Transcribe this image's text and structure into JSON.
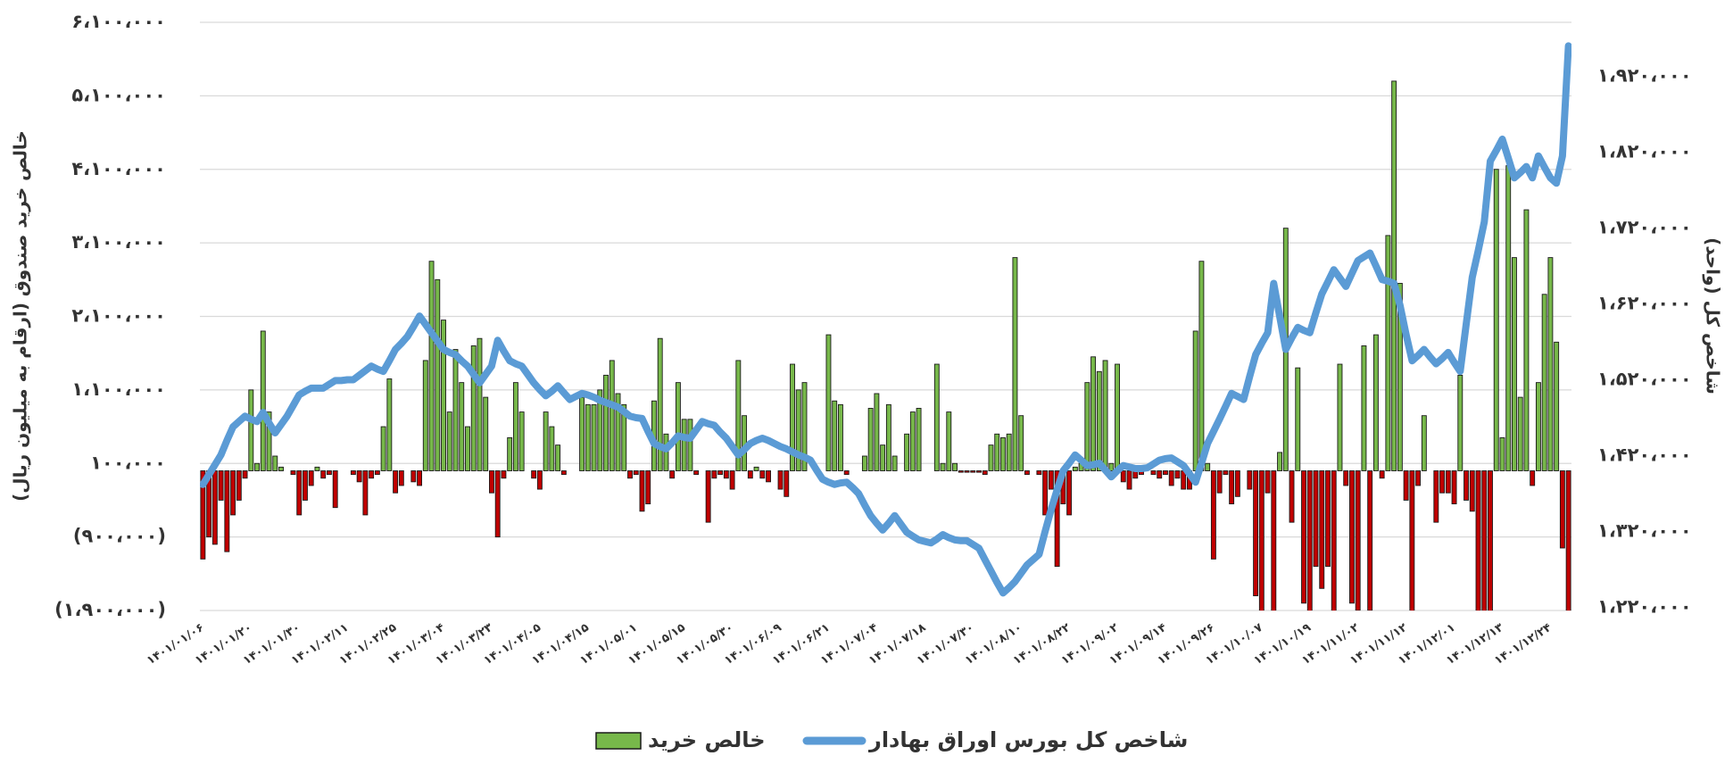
{
  "chart_data": {
    "type": "bar",
    "ylabel": "خالص خرید صندوق (ارقام به میلیون ریال)",
    "y2label": "شاخص کل (واحد)",
    "ylim": [
      -1900000,
      6100000
    ],
    "yticks": [
      {
        "value": 6100000,
        "label": "۶،۱۰۰،۰۰۰"
      },
      {
        "value": 5100000,
        "label": "۵،۱۰۰،۰۰۰"
      },
      {
        "value": 4100000,
        "label": "۴،۱۰۰،۰۰۰"
      },
      {
        "value": 3100000,
        "label": "۳،۱۰۰،۰۰۰"
      },
      {
        "value": 2100000,
        "label": "۲،۱۰۰،۰۰۰"
      },
      {
        "value": 1100000,
        "label": "۱،۱۰۰،۰۰۰"
      },
      {
        "value": 100000,
        "label": "۱۰۰،۰۰۰"
      },
      {
        "value": -900000,
        "label": "(۹۰۰،۰۰۰)"
      },
      {
        "value": -1900000,
        "label": "(۱،۹۰۰،۰۰۰)"
      }
    ],
    "y2lim": [
      1216000,
      1991000
    ],
    "y2ticks": [
      {
        "value": 1920000,
        "label": "۱،۹۲۰،۰۰۰"
      },
      {
        "value": 1820000,
        "label": "۱،۸۲۰،۰۰۰"
      },
      {
        "value": 1720000,
        "label": "۱،۷۲۰،۰۰۰"
      },
      {
        "value": 1620000,
        "label": "۱،۶۲۰،۰۰۰"
      },
      {
        "value": 1520000,
        "label": "۱،۵۲۰،۰۰۰"
      },
      {
        "value": 1420000,
        "label": "۱،۴۲۰،۰۰۰"
      },
      {
        "value": 1320000,
        "label": "۱،۳۲۰،۰۰۰"
      },
      {
        "value": 1220000,
        "label": "۱،۲۲۰،۰۰۰"
      }
    ],
    "grid": true,
    "categories": [
      "۱۴۰۱/۰۱/۰۶",
      null,
      null,
      null,
      null,
      null,
      null,
      null,
      "۱۴۰۱/۰۱/۲۰",
      null,
      null,
      null,
      null,
      null,
      null,
      null,
      "۱۴۰۱/۰۱/۳۰",
      null,
      null,
      null,
      null,
      null,
      null,
      null,
      "۱۴۰۱/۰۲/۱۱",
      null,
      null,
      null,
      null,
      null,
      null,
      null,
      "۱۴۰۱/۰۲/۲۵",
      null,
      null,
      null,
      null,
      null,
      null,
      null,
      "۱۴۰۱/۰۳/۰۴",
      null,
      null,
      null,
      null,
      null,
      null,
      null,
      "۱۴۰۱/۰۳/۲۳",
      null,
      null,
      null,
      null,
      null,
      null,
      null,
      "۱۴۰۱/۰۴/۰۵",
      null,
      null,
      null,
      null,
      null,
      null,
      null,
      "۱۴۰۱/۰۴/۱۵",
      null,
      null,
      null,
      null,
      null,
      null,
      null,
      "۱۴۰۱/۰۵/۰۱",
      null,
      null,
      null,
      null,
      null,
      null,
      null,
      "۱۴۰۱/۰۵/۱۵",
      null,
      null,
      null,
      null,
      null,
      null,
      null,
      "۱۴۰۱/۰۵/۳۰",
      null,
      null,
      null,
      null,
      null,
      null,
      null,
      "۱۴۰۱/۰۶/۰۹",
      null,
      null,
      null,
      null,
      null,
      null,
      null,
      "۱۴۰۱/۰۶/۲۱",
      null,
      null,
      null,
      null,
      null,
      null,
      null,
      "۱۴۰۱/۰۷/۰۴",
      null,
      null,
      null,
      null,
      null,
      null,
      null,
      "۱۴۰۱/۰۷/۱۸",
      null,
      null,
      null,
      null,
      null,
      null,
      null,
      "۱۴۰۱/۰۷/۳۰",
      null,
      null,
      null,
      null,
      null,
      null,
      null,
      "۱۴۰۱/۰۸/۱۰",
      null,
      null,
      null,
      null,
      null,
      null,
      null,
      "۱۴۰۱/۰۸/۲۲",
      null,
      null,
      null,
      null,
      null,
      null,
      null,
      "۱۴۰۱/۰۹/۰۲",
      null,
      null,
      null,
      null,
      null,
      null,
      null,
      "۱۴۰۱/۰۹/۱۴",
      null,
      null,
      null,
      null,
      null,
      null,
      null,
      "۱۴۰۱/۰۹/۲۶",
      null,
      null,
      null,
      null,
      null,
      null,
      null,
      "۱۴۰۱/۱۰/۰۷",
      null,
      null,
      null,
      null,
      null,
      null,
      null,
      "۱۴۰۱/۱۰/۱۹",
      null,
      null,
      null,
      null,
      null,
      null,
      null,
      "۱۴۰۱/۱۱/۰۲",
      null,
      null,
      null,
      null,
      null,
      null,
      null,
      "۱۴۰۱/۱۱/۱۲",
      null,
      null,
      null,
      null,
      null,
      null,
      null,
      "۱۴۰۱/۱۲/۰۱",
      null,
      null,
      null,
      null,
      null,
      null,
      null,
      "۱۴۰۱/۱۲/۱۳",
      null,
      null,
      null,
      null,
      null,
      null,
      null,
      "۱۴۰۱/۱۲/۲۴",
      null,
      null,
      null
    ],
    "series": [
      {
        "name": "خالص خرید",
        "type": "bar",
        "color": "#77b84a",
        "negative_color": "#c00000",
        "edge_color": "#1a1a1a",
        "values": [
          -1200000,
          -900000,
          -1000000,
          -400000,
          -1100000,
          -600000,
          -400000,
          -100000,
          1100000,
          100000,
          1900000,
          800000,
          200000,
          50000,
          0,
          -50000,
          -600000,
          -400000,
          -200000,
          50000,
          -100000,
          -50000,
          -500000,
          0,
          0,
          -50000,
          -150000,
          -600000,
          -100000,
          -50000,
          600000,
          1250000,
          -300000,
          -200000,
          0,
          -150000,
          -200000,
          1500000,
          2850000,
          2600000,
          2050000,
          800000,
          1650000,
          1200000,
          600000,
          1700000,
          1800000,
          1000000,
          -300000,
          -900000,
          -100000,
          450000,
          1200000,
          800000,
          0,
          -100000,
          -250000,
          800000,
          600000,
          350000,
          -50000,
          0,
          0,
          1000000,
          900000,
          900000,
          1100000,
          1300000,
          1500000,
          1050000,
          900000,
          -100000,
          -50000,
          -550000,
          -450000,
          950000,
          1800000,
          500000,
          -100000,
          1200000,
          700000,
          700000,
          -50000,
          0,
          -700000,
          -100000,
          -50000,
          -100000,
          -250000,
          1500000,
          750000,
          -100000,
          50000,
          -100000,
          -150000,
          0,
          -250000,
          -350000,
          1450000,
          1100000,
          1200000,
          0,
          0,
          0,
          1850000,
          950000,
          900000,
          -50000,
          0,
          0,
          200000,
          850000,
          1050000,
          350000,
          900000,
          200000,
          0,
          500000,
          800000,
          850000,
          0,
          0,
          1450000,
          100000,
          800000,
          100000,
          -20000,
          -20000,
          -20000,
          -20000,
          -50000,
          350000,
          500000,
          450000,
          500000,
          2900000,
          750000,
          -50000,
          0,
          -50000,
          -600000,
          -250000,
          -1300000,
          -450000,
          -600000,
          50000,
          100000,
          1200000,
          1550000,
          1350000,
          1500000,
          100000,
          1450000,
          -150000,
          -250000,
          -100000,
          -50000,
          0,
          -50000,
          -100000,
          -50000,
          -200000,
          -100000,
          -250000,
          -250000,
          1900000,
          2850000,
          100000,
          -1200000,
          -300000,
          -50000,
          -450000,
          -350000,
          0,
          -250000,
          -1700000,
          -2000000,
          -300000,
          -2000000,
          250000,
          3300000,
          -700000,
          1400000,
          -1800000,
          -2000000,
          -1300000,
          -1600000,
          -1300000,
          -2000000,
          1450000,
          -200000,
          -1800000,
          -1900000,
          1700000,
          -1900000,
          1850000,
          -100000,
          3200000,
          5300000,
          2550000,
          -400000,
          -2000000,
          -200000,
          750000,
          0,
          -700000,
          -300000,
          -300000,
          -450000,
          1300000,
          -400000,
          -550000,
          -2000000,
          -2000000,
          -2000000,
          4100000,
          450000,
          4150000,
          2900000,
          1000000,
          3550000,
          -200000,
          1200000,
          2400000,
          2900000,
          1750000,
          -1050000,
          -2000000
        ]
      },
      {
        "name": "شاخص کل بورس اوراق بهادار",
        "type": "line",
        "axis": "y2",
        "color": "#5b9bd5",
        "values": [
          1382000,
          1395000,
          1408000,
          1421000,
          1440000,
          1458000,
          1465000,
          1472000,
          1468000,
          1465000,
          1477000,
          1463000,
          1450000,
          1461000,
          1472000,
          1486000,
          1500000,
          1505000,
          1509000,
          1509000,
          1509000,
          1514000,
          1519000,
          1519000,
          1520000,
          1520000,
          1526000,
          1532000,
          1538000,
          1534000,
          1531000,
          1545000,
          1560000,
          1568000,
          1577000,
          1590000,
          1604000,
          1593000,
          1582000,
          1571000,
          1560000,
          1556000,
          1553000,
          1545000,
          1538000,
          1527000,
          1516000,
          1527000,
          1538000,
          1572000,
          1558000,
          1545000,
          1541000,
          1538000,
          1527000,
          1516000,
          1507000,
          1499000,
          1505000,
          1512000,
          1503000,
          1494000,
          1498000,
          1502000,
          1500000,
          1497000,
          1493000,
          1490000,
          1487000,
          1484000,
          1478000,
          1472000,
          1470000,
          1469000,
          1452000,
          1436000,
          1432000,
          1429000,
          1437000,
          1446000,
          1444000,
          1443000,
          1454000,
          1465000,
          1462000,
          1460000,
          1451000,
          1443000,
          1432000,
          1421000,
          1428000,
          1436000,
          1440000,
          1443000,
          1440000,
          1436000,
          1432000,
          1429000,
          1425000,
          1421000,
          1418000,
          1414000,
          1401000,
          1389000,
          1385000,
          1382000,
          1384000,
          1385000,
          1378000,
          1370000,
          1355000,
          1341000,
          1331000,
          1322000,
          1331000,
          1341000,
          1330000,
          1319000,
          1314000,
          1309000,
          1307000,
          1305000,
          1310000,
          1316000,
          1312000,
          1309000,
          1308000,
          1308000,
          1303000,
          1298000,
          1283000,
          1268000,
          1253000,
          1239000,
          1246000,
          1254000,
          1265000,
          1276000,
          1283000,
          1290000,
          1320000,
          1349000,
          1375000,
          1400000,
          1410000,
          1421000,
          1414000,
          1407000,
          1408000,
          1410000,
          1401000,
          1392000,
          1400000,
          1407000,
          1405000,
          1403000,
          1403000,
          1404000,
          1409000,
          1414000,
          1416000,
          1417000,
          1412000,
          1407000,
          1396000,
          1385000,
          1410000,
          1436000,
          1452000,
          1468000,
          1485000,
          1502000,
          1498000,
          1494000,
          1524000,
          1553000,
          1568000,
          1582000,
          1647000,
          1603000,
          1560000,
          1575000,
          1589000,
          1585000,
          1582000,
          1608000,
          1633000,
          1649000,
          1665000,
          1654000,
          1643000,
          1660000,
          1677000,
          1682000,
          1687000,
          1670000,
          1652000,
          1650000,
          1647000,
          1618000,
          1580000,
          1545000,
          1552000,
          1560000,
          1550000,
          1541000,
          1548000,
          1556000,
          1543000,
          1531000,
          1593000,
          1655000,
          1690000,
          1728000,
          1808000,
          1822000,
          1837000,
          1812000,
          1786000,
          1793000,
          1801000,
          1786000,
          1815000,
          1800000,
          1786000,
          1779000,
          1815000,
          1960000
        ]
      }
    ]
  }
}
